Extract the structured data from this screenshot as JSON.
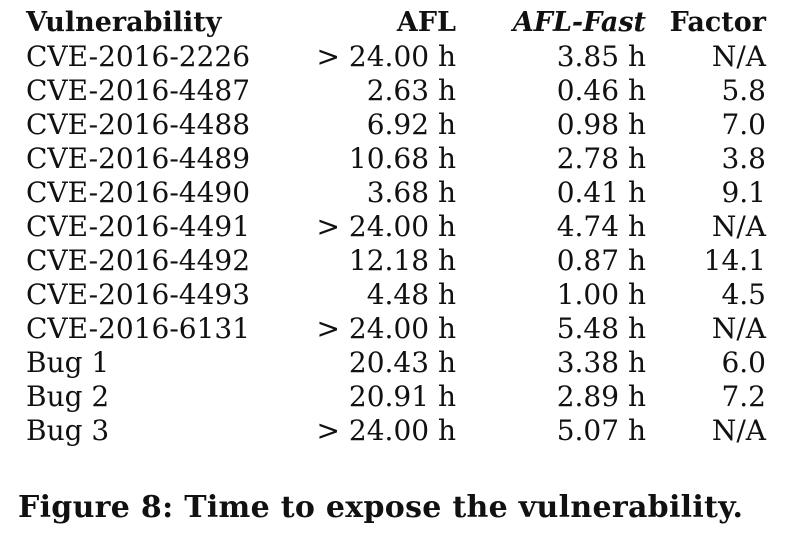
{
  "table": {
    "headers": {
      "vulnerability": "Vulnerability",
      "afl": "AFL",
      "aflfast": "AFL-Fast",
      "factor": "Factor"
    },
    "rows": [
      {
        "vulnerability": "CVE-2016-2226",
        "afl": "> 24.00 h",
        "aflfast": "3.85 h",
        "factor": "N/A"
      },
      {
        "vulnerability": "CVE-2016-4487",
        "afl": "2.63 h",
        "aflfast": "0.46 h",
        "factor": "5.8"
      },
      {
        "vulnerability": "CVE-2016-4488",
        "afl": "6.92 h",
        "aflfast": "0.98 h",
        "factor": "7.0"
      },
      {
        "vulnerability": "CVE-2016-4489",
        "afl": "10.68 h",
        "aflfast": "2.78 h",
        "factor": "3.8"
      },
      {
        "vulnerability": "CVE-2016-4490",
        "afl": "3.68 h",
        "aflfast": "0.41 h",
        "factor": "9.1"
      },
      {
        "vulnerability": "CVE-2016-4491",
        "afl": "> 24.00 h",
        "aflfast": "4.74 h",
        "factor": "N/A"
      },
      {
        "vulnerability": "CVE-2016-4492",
        "afl": "12.18 h",
        "aflfast": "0.87 h",
        "factor": "14.1"
      },
      {
        "vulnerability": "CVE-2016-4493",
        "afl": "4.48 h",
        "aflfast": "1.00 h",
        "factor": "4.5"
      },
      {
        "vulnerability": "CVE-2016-6131",
        "afl": "> 24.00 h",
        "aflfast": "5.48 h",
        "factor": "N/A"
      },
      {
        "vulnerability": "Bug 1",
        "afl": "20.43 h",
        "aflfast": "3.38 h",
        "factor": "6.0"
      },
      {
        "vulnerability": "Bug 2",
        "afl": "20.91 h",
        "aflfast": "2.89 h",
        "factor": "7.2"
      },
      {
        "vulnerability": "Bug 3",
        "afl": "> 24.00 h",
        "aflfast": "5.07 h",
        "factor": "N/A"
      }
    ]
  },
  "caption": "Figure 8:  Time to expose the vulnerability."
}
